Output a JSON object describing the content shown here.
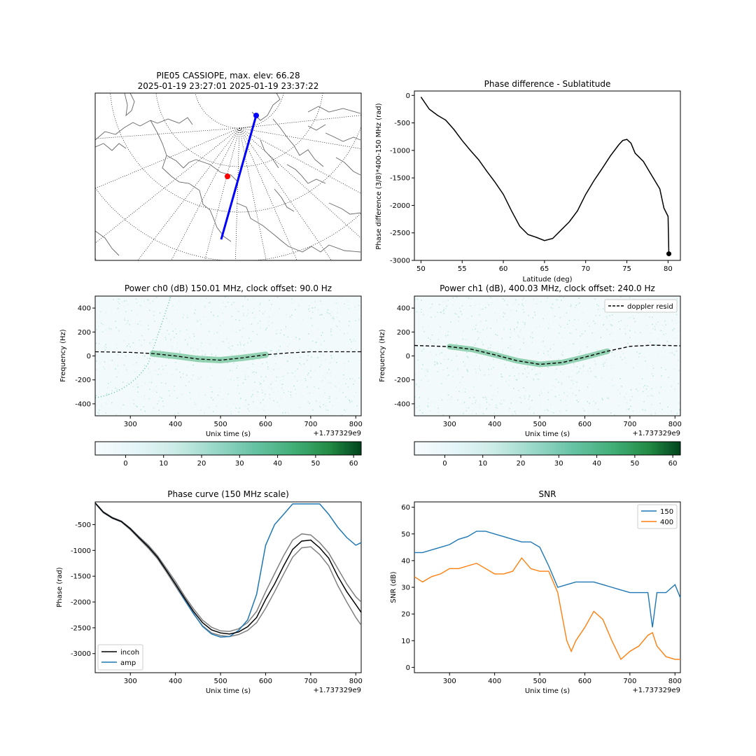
{
  "map_panel": {
    "title_line1": "PIE05 CASSIOPE, max. elev: 66.28",
    "title_line2": "2025-01-19 23:27:01 2025-01-19 23:37:22",
    "track_color": "#0000ff",
    "station_color": "#ff0000"
  },
  "chart_data": [
    {
      "id": "phase_sublat",
      "type": "line",
      "title": "Phase difference - Sublatitude",
      "xlabel": "Latitude (deg)",
      "ylabel": "Phase difference (3/8)*400-150 MHz (rad)",
      "xlim": [
        49.2,
        81.5
      ],
      "ylim": [
        -3000,
        80
      ],
      "xticks": [
        50,
        55,
        60,
        65,
        70,
        75,
        80
      ],
      "yticks": [
        0,
        -500,
        -1000,
        -1500,
        -2000,
        -2500,
        -3000
      ],
      "series": [
        {
          "color": "#000000",
          "x": [
            50,
            51,
            52,
            53,
            54,
            55,
            56,
            57,
            58,
            59,
            60,
            61,
            62,
            63,
            64,
            65,
            66,
            67,
            68,
            69,
            70,
            71,
            72,
            73,
            74,
            74.5,
            75,
            75.5,
            76,
            77,
            78,
            79,
            79.5,
            80,
            80.1
          ],
          "y": [
            -30,
            -250,
            -360,
            -450,
            -620,
            -820,
            -1000,
            -1170,
            -1380,
            -1580,
            -1800,
            -2100,
            -2380,
            -2530,
            -2580,
            -2640,
            -2600,
            -2450,
            -2300,
            -2100,
            -1800,
            -1550,
            -1330,
            -1100,
            -900,
            -820,
            -800,
            -870,
            -1050,
            -1200,
            -1450,
            -1700,
            -2050,
            -2200,
            -2880
          ]
        }
      ],
      "marker": {
        "x": 80.1,
        "y": -2880,
        "color": "#000000"
      }
    },
    {
      "id": "power_ch0",
      "type": "heatmap",
      "title": "Power ch0 (dB) 150.01 MHz, clock offset: 90.0 Hz",
      "xlabel": "Unix time (s)",
      "ylabel": "Frequency (Hz)",
      "offset_label": "+1.737329e9",
      "xlim": [
        222,
        812
      ],
      "ylim": [
        -500,
        500
      ],
      "xticks": [
        300,
        400,
        500,
        600,
        700,
        800
      ],
      "yticks": [
        400,
        200,
        0,
        -200,
        -400
      ],
      "doppler": {
        "x": [
          222,
          300,
          350,
          400,
          450,
          500,
          550,
          600,
          650,
          700,
          750,
          812
        ],
        "y": [
          35,
          30,
          20,
          0,
          -25,
          -35,
          -15,
          10,
          25,
          35,
          35,
          35
        ]
      },
      "colorbar": {
        "ticks": [
          0,
          10,
          20,
          30,
          40,
          50,
          60
        ],
        "range": [
          -8,
          62
        ],
        "cmap": "BuGn"
      }
    },
    {
      "id": "power_ch1",
      "type": "heatmap",
      "title": "Power ch1 (dB), 400.03 MHz, clock offset: 240.0 Hz",
      "xlabel": "Unix time (s)",
      "ylabel": "Frequency (Hz)",
      "offset_label": "+1.737329e9",
      "xlim": [
        222,
        812
      ],
      "ylim": [
        -500,
        500
      ],
      "xticks": [
        300,
        400,
        500,
        600,
        700,
        800
      ],
      "yticks": [
        400,
        200,
        0,
        -200,
        -400
      ],
      "legend": [
        {
          "name": "doppler resid",
          "style": "dashed",
          "color": "#000000"
        }
      ],
      "doppler": {
        "x": [
          222,
          300,
          350,
          400,
          450,
          500,
          550,
          600,
          650,
          700,
          750,
          812
        ],
        "y": [
          88,
          78,
          55,
          10,
          -40,
          -70,
          -55,
          -10,
          40,
          80,
          90,
          85
        ]
      },
      "colorbar": {
        "ticks": [
          0,
          10,
          20,
          30,
          40,
          50,
          60
        ],
        "range": [
          -8,
          62
        ],
        "cmap": "BuGn"
      }
    },
    {
      "id": "phase_curve",
      "type": "line",
      "title": "Phase curve (150 MHz scale)",
      "xlabel": "Unix time (s)",
      "ylabel": "Phase (rad)",
      "offset_label": "+1.737329e9",
      "xlim": [
        222,
        812
      ],
      "ylim": [
        -3370,
        -60
      ],
      "xticks": [
        300,
        400,
        500,
        600,
        700,
        800
      ],
      "yticks": [
        -500,
        -1000,
        -1500,
        -2000,
        -2500,
        -3000
      ],
      "legend": [
        {
          "name": "incoh",
          "color": "#000000"
        },
        {
          "name": "amp",
          "color": "#1f77b4"
        }
      ],
      "series": [
        {
          "name": "incoh",
          "color": "#000000",
          "x": [
            222,
            240,
            260,
            280,
            300,
            320,
            340,
            360,
            380,
            400,
            420,
            440,
            460,
            480,
            500,
            520,
            540,
            560,
            580,
            600,
            620,
            640,
            660,
            680,
            700,
            720,
            740,
            760,
            780,
            800,
            812
          ],
          "y": [
            -80,
            -260,
            -370,
            -440,
            -580,
            -760,
            -930,
            -1130,
            -1390,
            -1650,
            -1920,
            -2180,
            -2400,
            -2540,
            -2600,
            -2620,
            -2580,
            -2480,
            -2300,
            -1950,
            -1650,
            -1300,
            -980,
            -820,
            -800,
            -950,
            -1150,
            -1500,
            -1800,
            -2050,
            -2200
          ]
        },
        {
          "name": "amp",
          "color": "#1f77b4",
          "x": [
            222,
            240,
            260,
            280,
            300,
            320,
            340,
            360,
            380,
            400,
            420,
            440,
            460,
            480,
            500,
            520,
            540,
            560,
            580,
            600,
            620,
            640,
            660,
            680,
            700,
            720,
            740,
            760,
            780,
            800,
            812
          ],
          "y": [
            -80,
            -260,
            -370,
            -440,
            -580,
            -760,
            -930,
            -1130,
            -1390,
            -1650,
            -1950,
            -2220,
            -2470,
            -2620,
            -2680,
            -2670,
            -2550,
            -2350,
            -1850,
            -900,
            -500,
            -300,
            -100,
            -100,
            -100,
            -100,
            -300,
            -550,
            -750,
            -900,
            -850
          ]
        },
        {
          "color": "#808080",
          "x": [
            222,
            240,
            260,
            280,
            300,
            320,
            340,
            360,
            380,
            400,
            420,
            440,
            460,
            480,
            500,
            520,
            540,
            560,
            580,
            600,
            620,
            640,
            660,
            680,
            700,
            720,
            740,
            760,
            780,
            800,
            812
          ],
          "y": [
            -80,
            -250,
            -360,
            -430,
            -570,
            -740,
            -900,
            -1100,
            -1350,
            -1600,
            -1880,
            -2130,
            -2350,
            -2490,
            -2560,
            -2570,
            -2520,
            -2400,
            -2180,
            -1800,
            -1450,
            -1100,
            -800,
            -680,
            -700,
            -850,
            -1050,
            -1350,
            -1650,
            -1900,
            -2000
          ]
        },
        {
          "color": "#808080",
          "x": [
            222,
            240,
            260,
            280,
            300,
            320,
            340,
            360,
            380,
            400,
            420,
            440,
            460,
            480,
            500,
            520,
            540,
            560,
            580,
            600,
            620,
            640,
            660,
            680,
            700,
            720,
            740,
            760,
            780,
            800,
            812
          ],
          "y": [
            -90,
            -270,
            -380,
            -450,
            -600,
            -780,
            -960,
            -1160,
            -1420,
            -1690,
            -1960,
            -2230,
            -2460,
            -2600,
            -2650,
            -2670,
            -2630,
            -2550,
            -2400,
            -2120,
            -1800,
            -1460,
            -1130,
            -950,
            -930,
            -1080,
            -1300,
            -1680,
            -2000,
            -2300,
            -2450
          ]
        }
      ]
    },
    {
      "id": "snr",
      "type": "line",
      "title": "SNR",
      "xlabel": "Unix time (s)",
      "ylabel": "SNR (dB)",
      "offset_label": "+1.737329e9",
      "xlim": [
        222,
        812
      ],
      "ylim": [
        -2,
        62
      ],
      "xticks": [
        300,
        400,
        500,
        600,
        700,
        800
      ],
      "yticks": [
        0,
        10,
        20,
        30,
        40,
        50,
        60
      ],
      "legend": [
        {
          "name": "150",
          "color": "#1f77b4"
        },
        {
          "name": "400",
          "color": "#ff7f0e"
        }
      ],
      "series": [
        {
          "name": "150",
          "color": "#1f77b4",
          "x": [
            222,
            240,
            260,
            280,
            300,
            320,
            340,
            360,
            380,
            400,
            420,
            440,
            460,
            480,
            500,
            520,
            540,
            560,
            580,
            600,
            620,
            640,
            660,
            680,
            700,
            720,
            740,
            750,
            760,
            780,
            800,
            812
          ],
          "y": [
            43,
            43,
            44,
            45,
            46,
            48,
            49,
            51,
            51,
            50,
            49,
            48,
            47,
            47,
            45,
            38,
            30,
            31,
            32,
            32,
            32,
            31,
            30,
            29,
            28,
            28,
            28,
            15,
            28,
            28,
            31,
            26
          ]
        },
        {
          "name": "400",
          "color": "#ff7f0e",
          "x": [
            222,
            240,
            260,
            280,
            300,
            320,
            340,
            360,
            380,
            400,
            420,
            440,
            460,
            480,
            500,
            520,
            540,
            560,
            570,
            580,
            600,
            620,
            640,
            660,
            680,
            700,
            720,
            740,
            750,
            760,
            780,
            800,
            812
          ],
          "y": [
            34,
            32,
            34,
            35,
            37,
            37,
            38,
            39,
            37,
            35,
            35,
            36,
            41,
            37,
            36,
            36,
            28,
            10,
            6,
            10,
            15,
            21,
            18,
            10,
            3,
            6,
            8,
            12,
            13,
            8,
            4,
            3,
            3
          ]
        }
      ]
    }
  ]
}
